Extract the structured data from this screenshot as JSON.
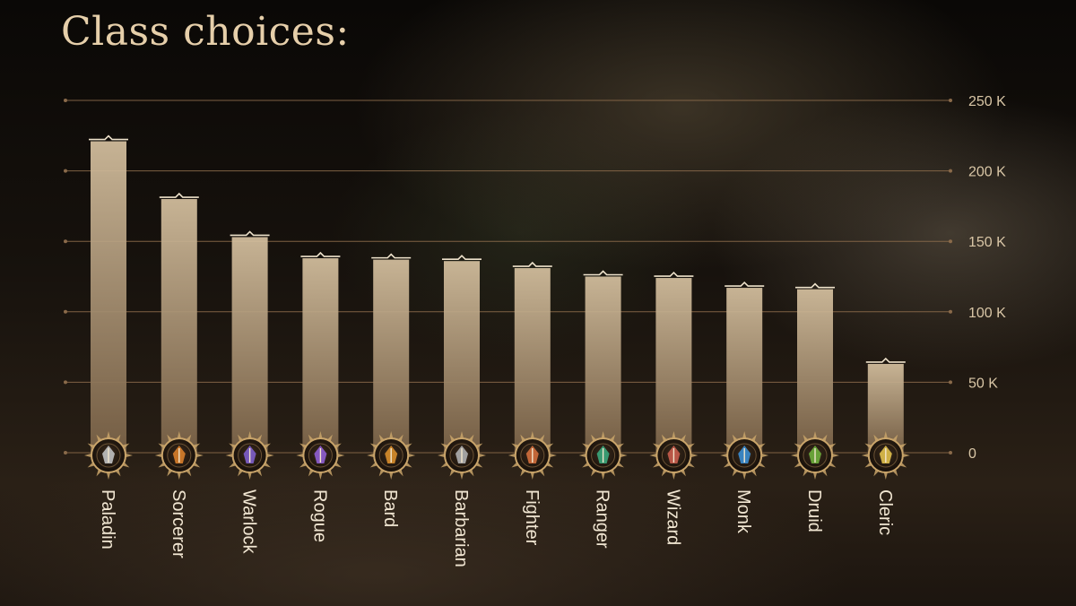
{
  "chart_data": {
    "type": "bar",
    "title": "Class choices:",
    "categories": [
      "Paladin",
      "Sorcerer",
      "Warlock",
      "Rogue",
      "Bard",
      "Barbarian",
      "Fighter",
      "Ranger",
      "Wizard",
      "Monk",
      "Druid",
      "Cleric"
    ],
    "values": [
      221,
      180,
      153,
      138,
      137,
      136,
      131,
      125,
      124,
      117,
      116,
      63
    ],
    "value_unit": "K",
    "ylim": [
      0,
      250
    ],
    "yticks": [
      0,
      50,
      100,
      150,
      200,
      250
    ],
    "ytick_labels": [
      "0",
      "50 K",
      "100 K",
      "150 K",
      "200 K",
      "250 K"
    ],
    "y_axis_position": "right",
    "grid": true,
    "legend": "none",
    "category_icons": [
      "paladin-emblem",
      "sorcerer-emblem",
      "warlock-emblem",
      "rogue-emblem",
      "bard-emblem",
      "barbarian-emblem",
      "fighter-emblem",
      "ranger-emblem",
      "wizard-emblem",
      "monk-emblem",
      "druid-emblem",
      "cleric-emblem"
    ]
  },
  "colors": {
    "title": "#e6cfaa",
    "bar_top": "#d6c1a0",
    "bar_bottom": "#7a6247",
    "gridline": "#8a6a4a",
    "emblem_gold": "#c9a46a",
    "emblem_accents": [
      "#b9b9b9",
      "#d07a2a",
      "#7a5cc2",
      "#8a5cc8",
      "#d0882a",
      "#a8a8a8",
      "#c96a3a",
      "#3aa076",
      "#c05a4a",
      "#3a88c8",
      "#6aa83a",
      "#d8b84a"
    ]
  }
}
